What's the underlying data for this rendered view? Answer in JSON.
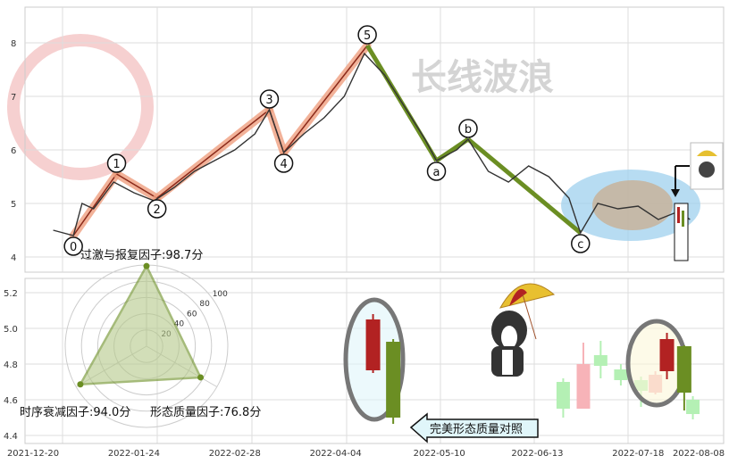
{
  "watermark": "长线波浪",
  "colors": {
    "wave_up": "#f0a080",
    "wave_down": "#6b8e23",
    "price": "#333333",
    "up_candle": "#b22222",
    "down_candle": "#6b8e23",
    "radar": "#6b8e23"
  },
  "chart_data": [
    {
      "type": "line",
      "yticks": [
        4,
        5,
        6,
        7,
        8
      ],
      "ylim": [
        3.7,
        8.7
      ],
      "xlim": [
        "2021-12-20",
        "2022-08-08"
      ],
      "grid": true,
      "price_series": [
        [
          "2021-12-27",
          4.5
        ],
        [
          "2022-01-03",
          4.4
        ],
        [
          "2022-01-06",
          5.0
        ],
        [
          "2022-01-10",
          4.9
        ],
        [
          "2022-01-17",
          5.4
        ],
        [
          "2022-01-24",
          5.2
        ],
        [
          "2022-01-31",
          5.05
        ],
        [
          "2022-02-07",
          5.3
        ],
        [
          "2022-02-14",
          5.6
        ],
        [
          "2022-02-21",
          5.8
        ],
        [
          "2022-02-28",
          6.0
        ],
        [
          "2022-03-07",
          6.3
        ],
        [
          "2022-03-12",
          6.75
        ],
        [
          "2022-03-17",
          5.95
        ],
        [
          "2022-03-24",
          6.3
        ],
        [
          "2022-03-31",
          6.6
        ],
        [
          "2022-04-07",
          7.0
        ],
        [
          "2022-04-14",
          7.8
        ],
        [
          "2022-04-21",
          7.4
        ],
        [
          "2022-04-28",
          6.8
        ],
        [
          "2022-05-05",
          6.2
        ],
        [
          "2022-05-09",
          5.8
        ],
        [
          "2022-05-16",
          6.0
        ],
        [
          "2022-05-20",
          6.2
        ],
        [
          "2022-05-27",
          5.6
        ],
        [
          "2022-06-03",
          5.4
        ],
        [
          "2022-06-10",
          5.7
        ],
        [
          "2022-06-17",
          5.5
        ],
        [
          "2022-06-24",
          5.1
        ],
        [
          "2022-06-28",
          4.45
        ],
        [
          "2022-07-04",
          5.0
        ],
        [
          "2022-07-11",
          4.9
        ],
        [
          "2022-07-18",
          4.95
        ],
        [
          "2022-07-25",
          4.7
        ],
        [
          "2022-08-01",
          4.85
        ],
        [
          "2022-08-05",
          4.7
        ]
      ],
      "wave_points": [
        {
          "label": "0",
          "date": "2022-01-03",
          "price": 4.4
        },
        {
          "label": "1",
          "date": "2022-01-18",
          "price": 5.55
        },
        {
          "label": "2",
          "date": "2022-02-01",
          "price": 5.1
        },
        {
          "label": "3",
          "date": "2022-03-12",
          "price": 6.75
        },
        {
          "label": "4",
          "date": "2022-03-17",
          "price": 5.95
        },
        {
          "label": "5",
          "date": "2022-04-15",
          "price": 7.95
        },
        {
          "label": "a",
          "date": "2022-05-09",
          "price": 5.8
        },
        {
          "label": "b",
          "date": "2022-05-20",
          "price": 6.2
        },
        {
          "label": "c",
          "date": "2022-06-28",
          "price": 4.45
        }
      ]
    },
    {
      "type": "candlestick",
      "yticks": [
        "5.2",
        "5.0",
        "4.8",
        "4.6",
        "4.4"
      ],
      "xticks": [
        "2021-12-20",
        "2022-01-24",
        "2022-02-28",
        "2022-04-04",
        "2022-05-10",
        "2022-06-13",
        "2022-07-18",
        "2022-08-08"
      ],
      "reference_candles": [
        {
          "date": "2022-04-17",
          "open": 4.765,
          "close": 5.05,
          "high": 5.08,
          "low": 4.75
        },
        {
          "date": "2022-04-24",
          "open": 4.925,
          "close": 4.5,
          "high": 4.94,
          "low": 4.465
        }
      ],
      "current_candles": [
        {
          "date": "2022-07-28",
          "open": 4.76,
          "close": 4.94,
          "high": 4.975,
          "low": 4.715
        },
        {
          "date": "2022-08-03",
          "open": 4.9,
          "close": 4.64,
          "high": 4.905,
          "low": 4.54
        }
      ],
      "faded_candles": [
        {
          "date": "2022-06-22",
          "open": 4.7,
          "close": 4.55,
          "high": 4.72,
          "low": 4.5
        },
        {
          "date": "2022-06-29",
          "open": 4.55,
          "close": 4.8,
          "high": 4.92,
          "low": 4.55
        },
        {
          "date": "2022-07-05",
          "open": 4.85,
          "close": 4.79,
          "high": 4.93,
          "low": 4.72
        },
        {
          "date": "2022-07-12",
          "open": 4.77,
          "close": 4.71,
          "high": 4.8,
          "low": 4.68
        },
        {
          "date": "2022-07-19",
          "open": 4.71,
          "close": 4.65,
          "high": 4.73,
          "low": 4.56
        },
        {
          "date": "2022-07-24",
          "open": 4.64,
          "close": 4.74,
          "high": 4.76,
          "low": 4.63
        },
        {
          "date": "2022-08-06",
          "open": 4.6,
          "close": 4.52,
          "high": 4.62,
          "low": 4.49
        }
      ],
      "annotation": "完美形态质量对照"
    },
    {
      "type": "radar",
      "rings": [
        "20",
        "40",
        "60",
        "80",
        "100"
      ],
      "max": 100,
      "axes": [
        {
          "name": "过激与报复因子",
          "value": 98.7,
          "label": "过激与报复因子:98.7分"
        },
        {
          "name": "形态质量因子",
          "value": 76.8,
          "label": "形态质量因子:76.8分"
        },
        {
          "name": "时序衰减因子",
          "value": 94.0,
          "label": "时序衰减因子:94.0分"
        }
      ]
    }
  ]
}
